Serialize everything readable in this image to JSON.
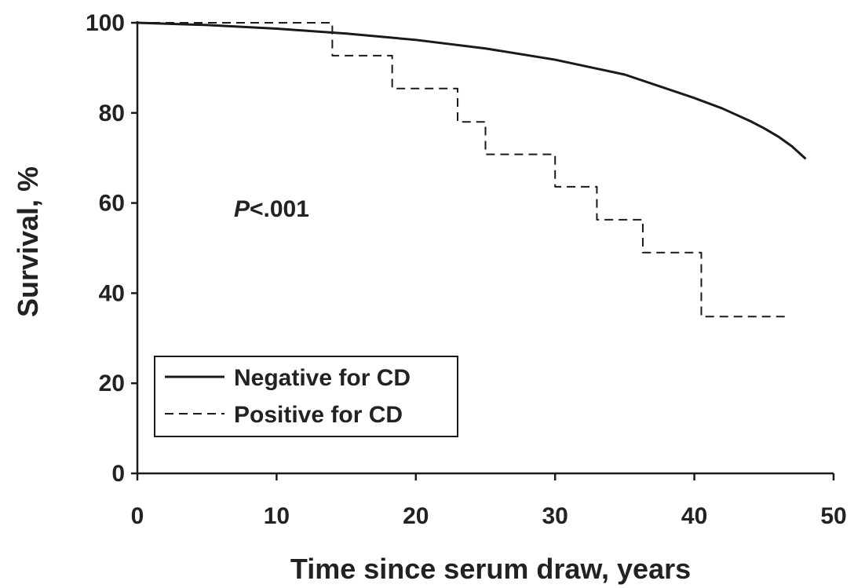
{
  "chart_data": {
    "type": "line",
    "xlabel": "Time since serum draw, years",
    "ylabel": "Survival, %",
    "xlim": [
      0,
      50
    ],
    "ylim": [
      0,
      100
    ],
    "xticks": [
      "0",
      "10",
      "20",
      "30",
      "40",
      "50"
    ],
    "yticks": [
      "0",
      "20",
      "40",
      "60",
      "80",
      "100"
    ],
    "grid": false,
    "legend_position": "bottom-left",
    "annotation": {
      "italic": "P",
      "rest": "<.001"
    },
    "series": [
      {
        "name": "Negative for CD",
        "style": "solid",
        "color": "#1a1a1a",
        "x": [
          0,
          5,
          10,
          15,
          20,
          25,
          30,
          35,
          40,
          42,
          44,
          45,
          46,
          47,
          48
        ],
        "y": [
          100,
          99.5,
          98.7,
          97.6,
          96.2,
          94.3,
          91.8,
          88.5,
          83.3,
          81.0,
          78.2,
          76.6,
          74.8,
          72.6,
          69.8
        ]
      },
      {
        "name": "Positive for CD",
        "style": "dashed",
        "color": "#1a1a1a",
        "step": true,
        "x": [
          0,
          14,
          18.3,
          23,
          25,
          30,
          33,
          36.3,
          40.5,
          46.7
        ],
        "y": [
          100,
          92.7,
          85.4,
          78.0,
          70.8,
          63.6,
          56.3,
          49.0,
          34.8,
          34.8
        ]
      }
    ]
  }
}
